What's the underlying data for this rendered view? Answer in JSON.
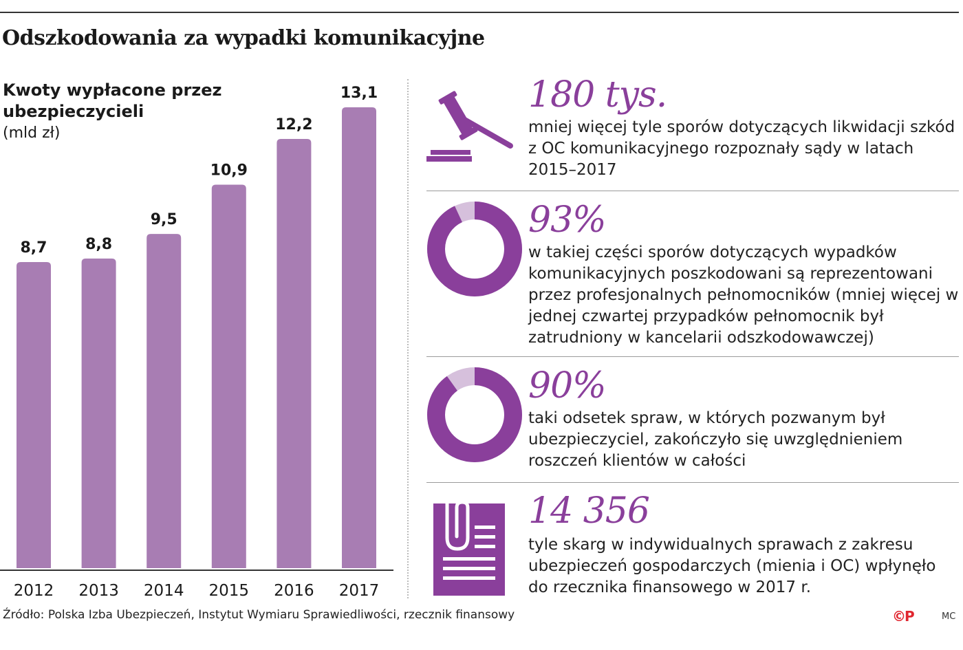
{
  "title": "Odszkodowania za wypadki komunikacyjne",
  "colors": {
    "bar": "#a87db3",
    "accent": "#8a3f9b",
    "accent_light": "#d6c0dc"
  },
  "chart_data": {
    "type": "bar",
    "subtitle_bold": "Kwoty wypłacone przez ubezpieczycieli",
    "unit": "(mld zł)",
    "categories": [
      "2012",
      "2013",
      "2014",
      "2015",
      "2016",
      "2017"
    ],
    "values": [
      8.7,
      8.8,
      9.5,
      10.9,
      12.2,
      13.1
    ],
    "value_labels": [
      "8,7",
      "8,8",
      "9,5",
      "10,9",
      "12,2",
      "13,1"
    ],
    "ylim": [
      0,
      13.1
    ],
    "grid": false,
    "legend": "none"
  },
  "facts": [
    {
      "icon": "gavel-icon",
      "stat": "180 tys.",
      "text": "mniej więcej tyle sporów dotyczących likwidacji szkód z OC komunikacyjnego rozpoznały sądy w latach 2015–2017"
    },
    {
      "icon": "donut-93-icon",
      "stat": "93%",
      "share": 0.93,
      "text": "w takiej części sporów dotyczących wypadków komunikacyjnych poszkodowani są reprezentowani przez profesjonalnych pełnomocników (mniej więcej w jednej czwartej przypadków pełnomocnik był zatrudniony w kancelarii odszkodowawczej)"
    },
    {
      "icon": "donut-90-icon",
      "stat": "90%",
      "share": 0.9,
      "text": "taki odsetek spraw, w których pozwanym był ubezpieczyciel, zakończyło się uwzględnieniem roszczeń klientów w całości"
    },
    {
      "icon": "document-clip-icon",
      "stat": "14 356",
      "text": "tyle skarg w indywidualnych sprawach z zakresu ubezpieczeń gospodarczych (mienia i OC) wpłynęło do rzecznika finansowego w 2017 r."
    }
  ],
  "source": "Źródło: Polska Izba Ubezpieczeń, Instytut Wymiaru Sprawiedliwości, rzecznik finansowy",
  "logo": "©P",
  "author": "MC"
}
